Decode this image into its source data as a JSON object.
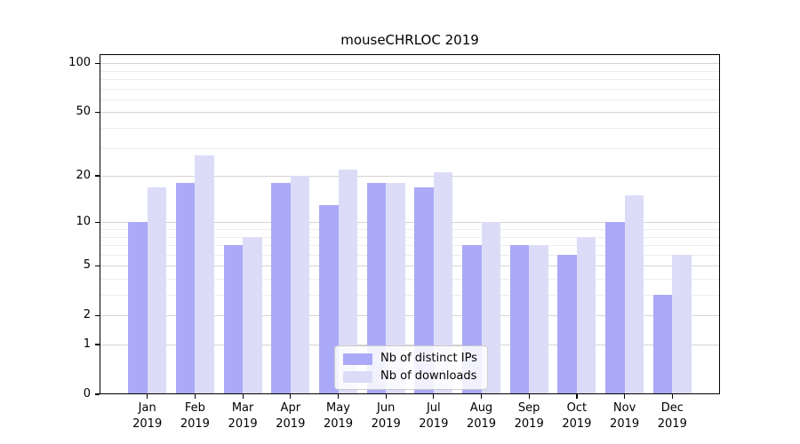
{
  "chart_data": {
    "type": "bar",
    "title": "mouseCHRLOC 2019",
    "categories": [
      "Jan",
      "Feb",
      "Mar",
      "Apr",
      "May",
      "Jun",
      "Jul",
      "Aug",
      "Sep",
      "Oct",
      "Nov",
      "Dec"
    ],
    "category_year": "2019",
    "series": [
      {
        "name": "Nb of distinct IPs",
        "color": "#aaaaf8",
        "values": [
          10,
          18,
          7,
          18,
          13,
          18,
          17,
          7,
          7,
          6,
          10,
          3
        ]
      },
      {
        "name": "Nb of downloads",
        "color": "#dcdcf8",
        "values": [
          17,
          27,
          8,
          20,
          22,
          18,
          21,
          10,
          7,
          8,
          15,
          6
        ]
      }
    ],
    "yscale": "log1p",
    "ylim": [
      0,
      113
    ],
    "yticks": [
      0,
      1,
      2,
      5,
      10,
      20,
      50,
      100
    ],
    "minor_gridlines": [
      3,
      4,
      6,
      7,
      8,
      9,
      30,
      40,
      60,
      70,
      80,
      90
    ],
    "grid": true,
    "legend_position": "lower-center",
    "colors": {
      "axis": "#000000",
      "background": "#ffffff",
      "major_grid": "#d4d4d4",
      "minor_grid": "#ededed"
    }
  }
}
